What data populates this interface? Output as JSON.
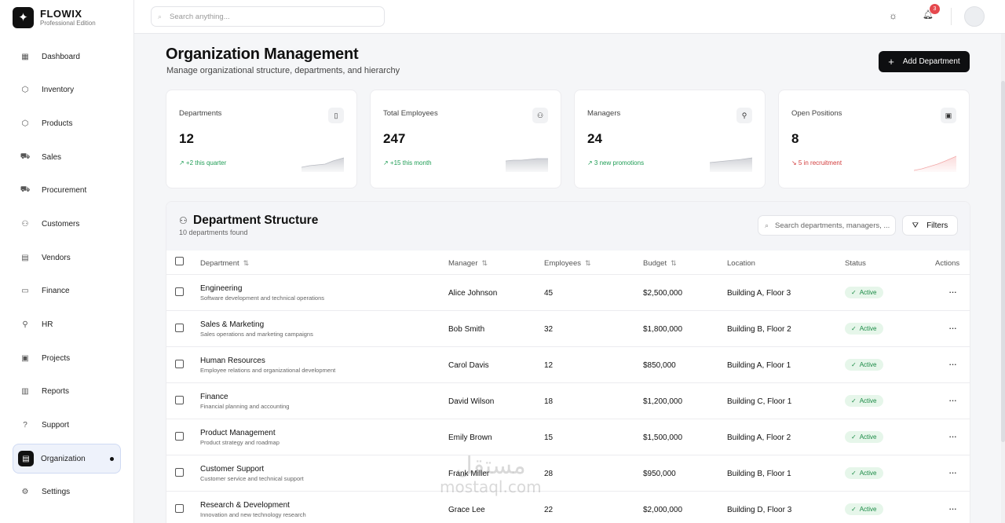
{
  "brand": {
    "name": "FLOWIX",
    "edition": "Professional Edition"
  },
  "sidebar": {
    "items": [
      {
        "label": "Dashboard",
        "icon": "dashboard-icon",
        "glyph": "▦"
      },
      {
        "label": "Inventory",
        "icon": "box-icon",
        "glyph": "⬡"
      },
      {
        "label": "Products",
        "icon": "package-icon",
        "glyph": "⬡"
      },
      {
        "label": "Sales",
        "icon": "cart-icon",
        "glyph": "⛟"
      },
      {
        "label": "Procurement",
        "icon": "truck-icon",
        "glyph": "⛟"
      },
      {
        "label": "Customers",
        "icon": "users-icon",
        "glyph": "⚇"
      },
      {
        "label": "Vendors",
        "icon": "store-icon",
        "glyph": "▤"
      },
      {
        "label": "Finance",
        "icon": "wallet-icon",
        "glyph": "▭"
      },
      {
        "label": "HR",
        "icon": "user-check-icon",
        "glyph": "⚲"
      },
      {
        "label": "Projects",
        "icon": "briefcase-icon",
        "glyph": "▣"
      },
      {
        "label": "Reports",
        "icon": "bar-chart-icon",
        "glyph": "▥"
      },
      {
        "label": "Support",
        "icon": "help-circle-icon",
        "glyph": "?"
      },
      {
        "label": "Organization",
        "icon": "building-icon",
        "glyph": "▤",
        "active": true
      },
      {
        "label": "Settings",
        "icon": "gear-icon",
        "glyph": "⚙"
      }
    ]
  },
  "header": {
    "search_placeholder": "Search anything...",
    "notification_count": "3"
  },
  "page": {
    "title": "Organization Management",
    "subtitle": "Manage organizational structure, departments, and hierarchy",
    "add_button": "Add Department"
  },
  "stats": [
    {
      "label": "Departments",
      "value": "12",
      "trend": "↗ +2 this quarter",
      "trend_dir": "up",
      "icon": "building-icon",
      "glyph": "▯"
    },
    {
      "label": "Total Employees",
      "value": "247",
      "trend": "↗ +15 this month",
      "trend_dir": "up",
      "icon": "users-icon",
      "glyph": "⚇"
    },
    {
      "label": "Managers",
      "value": "24",
      "trend": "↗ 3 new promotions",
      "trend_dir": "up",
      "icon": "user-check-icon",
      "glyph": "⚲"
    },
    {
      "label": "Open Positions",
      "value": "8",
      "trend": "↘ 5 in recruitment",
      "trend_dir": "down",
      "icon": "briefcase-icon",
      "glyph": "▣"
    }
  ],
  "table": {
    "title": "Department Structure",
    "count_text": "10 departments found",
    "search_placeholder": "Search departments, managers, ...",
    "filters_label": "Filters",
    "columns": {
      "department": "Department",
      "manager": "Manager",
      "employees": "Employees",
      "budget": "Budget",
      "location": "Location",
      "status": "Status",
      "actions": "Actions"
    },
    "rows": [
      {
        "name": "Engineering",
        "desc": "Software development and technical operations",
        "manager": "Alice Johnson",
        "employees": "45",
        "budget": "$2,500,000",
        "location": "Building A, Floor 3",
        "status": "Active"
      },
      {
        "name": "Sales & Marketing",
        "desc": "Sales operations and marketing campaigns",
        "manager": "Bob Smith",
        "employees": "32",
        "budget": "$1,800,000",
        "location": "Building B, Floor 2",
        "status": "Active"
      },
      {
        "name": "Human Resources",
        "desc": "Employee relations and organizational development",
        "manager": "Carol Davis",
        "employees": "12",
        "budget": "$850,000",
        "location": "Building A, Floor 1",
        "status": "Active"
      },
      {
        "name": "Finance",
        "desc": "Financial planning and accounting",
        "manager": "David Wilson",
        "employees": "18",
        "budget": "$1,200,000",
        "location": "Building C, Floor 1",
        "status": "Active"
      },
      {
        "name": "Product Management",
        "desc": "Product strategy and roadmap",
        "manager": "Emily Brown",
        "employees": "15",
        "budget": "$1,500,000",
        "location": "Building A, Floor 2",
        "status": "Active"
      },
      {
        "name": "Customer Support",
        "desc": "Customer service and technical support",
        "manager": "Frank Miller",
        "employees": "28",
        "budget": "$950,000",
        "location": "Building B, Floor 1",
        "status": "Active"
      },
      {
        "name": "Research & Development",
        "desc": "Innovation and new technology research",
        "manager": "Grace Lee",
        "employees": "22",
        "budget": "$2,000,000",
        "location": "Building D, Floor 3",
        "status": "Active"
      }
    ]
  },
  "watermark": {
    "arabic": "مستقل",
    "latin": "mostaql.com"
  },
  "colors": {
    "accent": "#0e0f11",
    "success": "#1a8a45",
    "danger": "#d23b3b",
    "active_nav_bg": "#eef2fb"
  }
}
